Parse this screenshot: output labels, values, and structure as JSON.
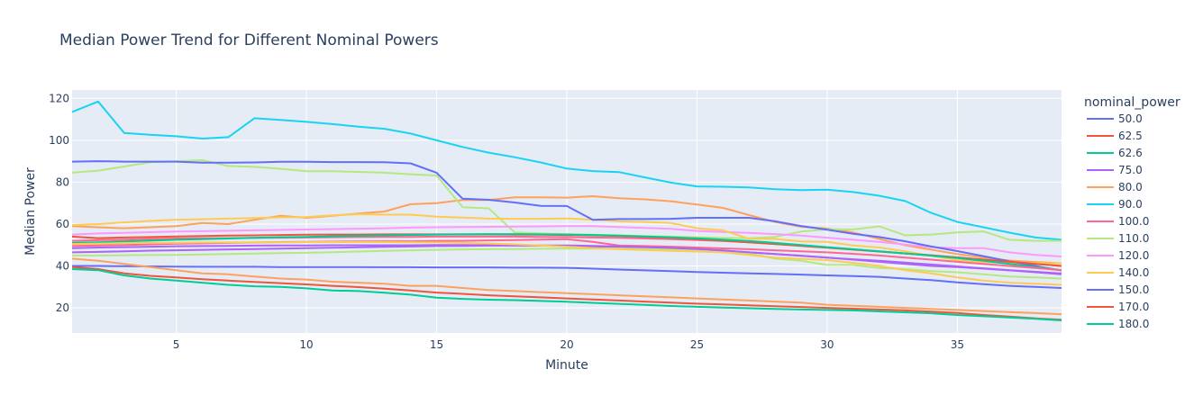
{
  "chart_data": {
    "type": "line",
    "title": "Median Power Trend for Different Nominal Powers",
    "xlabel": "Minute",
    "ylabel": "Median Power",
    "xlim": [
      1,
      39
    ],
    "ylim": [
      8,
      124
    ],
    "xticks": [
      5,
      10,
      15,
      20,
      25,
      30,
      35
    ],
    "yticks": [
      20,
      40,
      60,
      80,
      100,
      120
    ],
    "grid": true,
    "legend_title": "nominal_power",
    "legend_position": "right",
    "x": [
      1,
      2,
      3,
      4,
      5,
      6,
      7,
      8,
      9,
      10,
      11,
      12,
      13,
      14,
      15,
      16,
      17,
      18,
      19,
      20,
      21,
      22,
      23,
      24,
      25,
      26,
      27,
      28,
      29,
      30,
      31,
      32,
      33,
      34,
      35,
      36,
      37,
      38,
      39
    ],
    "series": [
      {
        "name": "50.0",
        "color": "#636efa",
        "values": [
          40,
          40,
          39.9,
          39.8,
          39.7,
          39.6,
          39.6,
          39.6,
          39.5,
          39.5,
          39.5,
          39.5,
          39.4,
          39.4,
          39.3,
          39.3,
          39.3,
          39.2,
          39.2,
          39.1,
          38.7,
          38.3,
          37.9,
          37.5,
          37.1,
          36.8,
          36.5,
          36.2,
          35.9,
          35.5,
          35.2,
          34.8,
          34,
          33.2,
          32.2,
          31.3,
          30.5,
          30,
          29.5
        ]
      },
      {
        "name": "62.5",
        "color": "#EF553B",
        "values": [
          39.5,
          38.5,
          36.5,
          35.3,
          34.5,
          33.7,
          33,
          32.4,
          31.8,
          31.2,
          30.5,
          29.9,
          29.2,
          28.3,
          27.3,
          26.7,
          26,
          25.5,
          25,
          24.5,
          24,
          23.5,
          23,
          22.5,
          22,
          21.6,
          21.2,
          20.8,
          20.4,
          20,
          19.6,
          19.2,
          18.8,
          18.2,
          17.6,
          16.6,
          15.8,
          15,
          14.3
        ]
      },
      {
        "name": "62.6",
        "color": "#00cc96",
        "values": [
          38.5,
          38,
          35.5,
          34,
          33,
          32,
          31,
          30.3,
          30,
          29.3,
          28.3,
          28,
          27.2,
          26.3,
          24.9,
          24.3,
          23.9,
          23.7,
          23.3,
          22.9,
          22.4,
          21.9,
          21.4,
          20.9,
          20.5,
          20.1,
          19.8,
          19.5,
          19.2,
          19,
          18.8,
          18.3,
          17.9,
          17.4,
          16.6,
          16,
          15.4,
          14.8,
          14
        ]
      },
      {
        "name": "75.0",
        "color": "#ab63fa",
        "values": [
          48.5,
          48.8,
          49,
          49.2,
          49.4,
          49.5,
          49.6,
          49.7,
          49.8,
          49.8,
          49.9,
          49.9,
          49.9,
          49.9,
          50,
          50,
          49.9,
          49.8,
          49.7,
          49.5,
          49.3,
          49.1,
          48.8,
          48.4,
          48,
          47.3,
          46.5,
          45.7,
          44.9,
          44,
          43.2,
          42.5,
          41.6,
          40.7,
          39.8,
          38.9,
          38,
          37.2,
          36.4
        ]
      },
      {
        "name": "80.0",
        "color": "#FFA15A",
        "values": [
          59,
          58.5,
          58,
          58.5,
          59,
          60.5,
          60,
          62,
          64,
          63,
          64,
          65,
          66,
          69.5,
          70,
          71.5,
          71.5,
          72.8,
          72.8,
          72.6,
          73.3,
          72.3,
          71.8,
          70.9,
          69.3,
          67.7,
          64.3,
          61,
          58.7,
          57.9,
          56,
          52.9,
          49.9,
          47.8,
          45.7,
          44,
          42.6,
          41.9,
          41.3
        ]
      },
      {
        "name": "90.0",
        "color": "#19d3f3",
        "values": [
          113.5,
          118.5,
          103.5,
          102.6,
          101.9,
          100.8,
          101.5,
          110.5,
          109.7,
          108.8,
          107.7,
          106.5,
          105.5,
          103.2,
          100,
          96.8,
          94.1,
          91.9,
          89.4,
          86.5,
          85.3,
          84.8,
          82.3,
          79.8,
          78,
          77.8,
          77.5,
          76.6,
          76.2,
          76.4,
          75.3,
          73.5,
          71,
          65.3,
          61,
          58.5,
          55.9,
          53.6,
          52.5
        ]
      },
      {
        "name": "100.0",
        "color": "#FF6692",
        "values": [
          52,
          52.3,
          52.6,
          52.9,
          53.1,
          53.2,
          53.3,
          53.4,
          53.5,
          53.6,
          53.7,
          53.8,
          53.9,
          53.9,
          54,
          54,
          54,
          54,
          53.9,
          53.8,
          53.6,
          53.4,
          53.1,
          52.8,
          52.4,
          51.9,
          51.3,
          50.5,
          49.7,
          48.8,
          47.9,
          47,
          46,
          45,
          44,
          43,
          42,
          41,
          40
        ]
      },
      {
        "name": "110.0",
        "color": "#B6E880",
        "values": [
          84.5,
          85.5,
          87.5,
          89.5,
          90,
          90.5,
          87.7,
          87.3,
          86.4,
          85.2,
          85.2,
          84.9,
          84.5,
          83.8,
          83.2,
          68,
          67.5,
          56,
          55.5,
          55.2,
          54.9,
          54.6,
          54.3,
          54,
          53.7,
          53.4,
          53.2,
          53.9,
          56.4,
          57.5,
          57.4,
          58.9,
          54.6,
          55,
          56,
          56.5,
          52.5,
          52,
          52
        ]
      },
      {
        "name": "120.0",
        "color": "#FF97FF",
        "values": [
          55,
          55.5,
          55.8,
          56.1,
          56.4,
          56.6,
          56.8,
          57,
          57.2,
          57.4,
          57.6,
          57.8,
          58,
          58.3,
          58.5,
          58.6,
          58.7,
          58.8,
          58.9,
          59,
          59,
          58.6,
          58.2,
          57.7,
          56.7,
          56.2,
          55.8,
          55.2,
          54.5,
          53.5,
          52.5,
          51.5,
          50.2,
          49,
          48.5,
          48.5,
          46.5,
          45.3,
          44.5
        ]
      },
      {
        "name": "140.0",
        "color": "#FECB52",
        "values": [
          59.5,
          60,
          60.8,
          61.5,
          62.1,
          62.3,
          62.6,
          62.9,
          63.2,
          63.4,
          64.2,
          64.7,
          64.5,
          64.5,
          63.5,
          63.1,
          62.6,
          62.5,
          62.5,
          62.7,
          62.1,
          61.3,
          61,
          60.5,
          58,
          57,
          53,
          52.9,
          51.7,
          51.5,
          49.8,
          48.8,
          47,
          44.8,
          42.8,
          41.8,
          41.5,
          41.3,
          41.3
        ]
      },
      {
        "name": "150.0",
        "color": "#636efa",
        "values": [
          89.8,
          90,
          89.8,
          89.8,
          89.8,
          89.3,
          89.3,
          89.4,
          89.7,
          89.7,
          89.6,
          89.6,
          89.5,
          89,
          84.5,
          72.1,
          71.6,
          70.3,
          68.7,
          68.6,
          62,
          62.4,
          62.4,
          62.5,
          63,
          63,
          63,
          61.3,
          59.1,
          57.3,
          55.4,
          53.8,
          51.8,
          49.3,
          47.1,
          44.7,
          42.2,
          40,
          37.8
        ]
      },
      {
        "name": "170.0",
        "color": "#EF553B",
        "values": [
          54,
          53.3,
          53.6,
          53.8,
          54.1,
          54.3,
          54.5,
          54.6,
          54.8,
          54.9,
          55,
          55,
          55.1,
          55.1,
          55.1,
          55.1,
          55.1,
          55,
          54.9,
          54.8,
          54.6,
          54.3,
          53.9,
          53.4,
          52.8,
          52.1,
          51.3,
          50.5,
          49.6,
          48.7,
          47.8,
          46.9,
          46,
          45.1,
          44.1,
          43,
          42,
          41,
          40
        ]
      },
      {
        "name": "180.0",
        "color": "#00cc96",
        "values": [
          51,
          51.3,
          51.7,
          52.1,
          52.5,
          52.8,
          53.1,
          53.4,
          53.7,
          53.9,
          54.2,
          54.4,
          54.6,
          54.8,
          55,
          55.1,
          55.2,
          55.2,
          55.1,
          55,
          54.8,
          54.5,
          54.1,
          53.7,
          53.2,
          52.6,
          51.9,
          51,
          50,
          49,
          48,
          47,
          46,
          44.9,
          43.8,
          42.5,
          41,
          39.5,
          38
        ]
      },
      {
        "color": "#FFA15A",
        "values": [
          43.5,
          42.5,
          41,
          39.5,
          38,
          36.5,
          36,
          35,
          34,
          33.5,
          32.5,
          32,
          31.5,
          30.5,
          30.5,
          29.5,
          28.5,
          28,
          27.5,
          27,
          26.5,
          26,
          25.5,
          25,
          24.5,
          24,
          23.5,
          23,
          22.5,
          21.5,
          21,
          20.5,
          20,
          19.5,
          19,
          18.5,
          18,
          17.5,
          17
        ]
      },
      {
        "color": "#FF6692",
        "values": [
          49.5,
          49.8,
          50,
          50.3,
          50.6,
          50.8,
          51,
          51.2,
          51.4,
          51.5,
          51.6,
          51.7,
          51.8,
          51.8,
          51.9,
          52,
          52.2,
          52.4,
          52.6,
          52.8,
          51.5,
          49.8,
          49.5,
          49.2,
          48.8,
          48.4,
          48,
          47.5,
          47,
          46.5,
          45.8,
          45,
          44,
          43,
          42,
          41,
          40,
          39,
          38
        ]
      },
      {
        "color": "#B6E880",
        "values": [
          45,
          45,
          45.1,
          45.2,
          45.3,
          45.5,
          45.7,
          45.9,
          46.1,
          46.3,
          46.6,
          46.9,
          47.2,
          47.5,
          47.7,
          47.9,
          48,
          48.1,
          48.2,
          48.3,
          48.3,
          48.3,
          48.2,
          48,
          47.8,
          47.5,
          46,
          43.5,
          42.5,
          40.5,
          40.5,
          39,
          38.5,
          37.5,
          37,
          36,
          35,
          34.5,
          34
        ]
      },
      {
        "color": "#ab63fa",
        "values": [
          46.5,
          46.7,
          47,
          47.3,
          47.5,
          47.7,
          47.9,
          48.1,
          48.3,
          48.5,
          48.7,
          48.9,
          49.1,
          49.3,
          49.5,
          49.6,
          49.7,
          49.8,
          49.8,
          49.8,
          49.6,
          49.3,
          49,
          48.6,
          48.1,
          47.4,
          46.5,
          45.7,
          44.8,
          44,
          43,
          42,
          41,
          40,
          39.5,
          38.7,
          37.9,
          37,
          36
        ]
      },
      {
        "color": "#FECB52",
        "values": [
          50.5,
          50.7,
          50.9,
          51,
          51.1,
          51.2,
          51.2,
          51.3,
          51.3,
          51.4,
          51.4,
          51.4,
          51.4,
          51.3,
          51.2,
          51,
          50.7,
          50.3,
          49.8,
          49.2,
          48.5,
          48,
          47.6,
          47.2,
          46.9,
          46.5,
          45.3,
          44,
          43.4,
          42.8,
          41.5,
          40,
          38,
          36.5,
          34.5,
          33,
          32,
          31.5,
          31
        ]
      }
    ]
  }
}
